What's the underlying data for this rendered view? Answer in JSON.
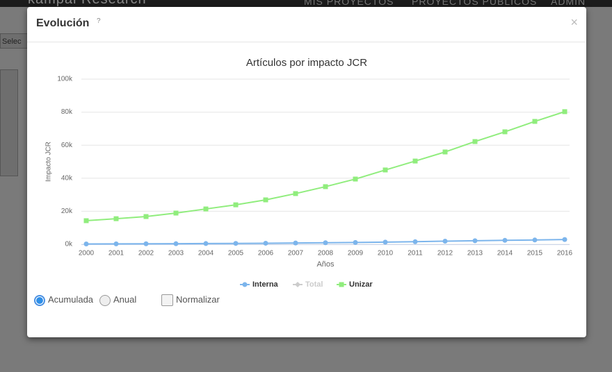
{
  "nav": {
    "logo": "kampal Research",
    "items": [
      "MIS PROYECTOS",
      "PROYECTOS PÚBLICOS",
      "ADMIN"
    ]
  },
  "sidebar": {
    "select": "Selec"
  },
  "modal": {
    "title": "Evolución",
    "help": "?",
    "close": "×"
  },
  "chart_data": {
    "type": "line",
    "title": "Artículos por impacto JCR",
    "x_label": "Años",
    "y_label": "Impacto JCR",
    "categories": [
      "2000",
      "2001",
      "2002",
      "2003",
      "2004",
      "2005",
      "2006",
      "2007",
      "2008",
      "2009",
      "2010",
      "2011",
      "2012",
      "2013",
      "2014",
      "2015",
      "2016"
    ],
    "series": [
      {
        "name": "Interna",
        "color": "#7cb5ec",
        "marker": "circle",
        "visible": true,
        "values": [
          200,
          250,
          300,
          350,
          450,
          550,
          650,
          800,
          950,
          1100,
          1300,
          1550,
          1900,
          2150,
          2400,
          2600,
          2900
        ]
      },
      {
        "name": "Total",
        "color": "#cccccc",
        "marker": "diamond",
        "visible": false
      },
      {
        "name": "Unizar",
        "color": "#90ed7d",
        "marker": "square",
        "visible": true,
        "values": [
          14300,
          15500,
          16800,
          18900,
          21400,
          23900,
          26900,
          30700,
          34900,
          39500,
          45000,
          50400,
          55900,
          62200,
          68100,
          74400,
          80300
        ]
      }
    ],
    "ylim": [
      0,
      100000
    ],
    "yticks": [
      {
        "value": 0,
        "label": "0k"
      },
      {
        "value": 20000,
        "label": "20k"
      },
      {
        "value": 40000,
        "label": "40k"
      },
      {
        "value": 60000,
        "label": "60k"
      },
      {
        "value": 80000,
        "label": "80k"
      },
      {
        "value": 100000,
        "label": "100k"
      }
    ],
    "grid": true,
    "legend": "bottom"
  },
  "controls": {
    "mode": [
      {
        "label": "Acumulada",
        "checked": true
      },
      {
        "label": "Anual",
        "checked": false
      }
    ],
    "normalize": {
      "label": "Normalizar",
      "checked": false
    }
  }
}
